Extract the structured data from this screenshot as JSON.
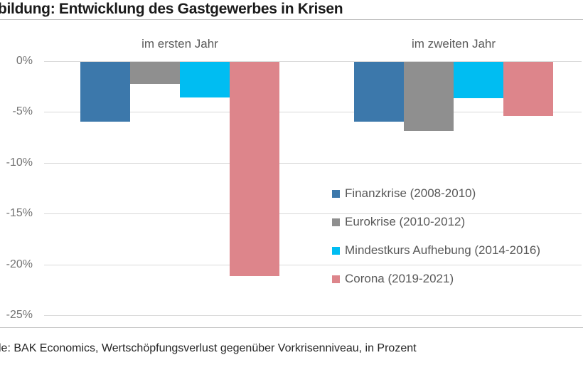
{
  "title": "bildung: Entwicklung des Gastgewerbes in Krisen",
  "source_note": "le: BAK Economics, Wertschöpfungsverlust gegenüber Vorkrisenniveau, in Prozent",
  "colors": {
    "finanzkrise": "#3C78AB",
    "eurokrise": "#8F8F8F",
    "mindestkurs": "#00BDF2",
    "corona": "#DD858B",
    "gridline": "#D9D9D9",
    "rule": "#BFBFBF",
    "label_gray": "#595959"
  },
  "chart_data": {
    "type": "bar",
    "categories": [
      "im ersten Jahr",
      "im zweiten Jahr"
    ],
    "series": [
      {
        "name": "Finanzkrise (2008-2010)",
        "color": "#3C78AB",
        "values": [
          -5.9,
          -5.9
        ]
      },
      {
        "name": "Eurokrise (2010-2012)",
        "color": "#8F8F8F",
        "values": [
          -2.2,
          -6.8
        ]
      },
      {
        "name": "Mindestkurs Aufhebung (2014-2016)",
        "color": "#00BDF2",
        "values": [
          -3.5,
          -3.6
        ]
      },
      {
        "name": "Corona (2019-2021)",
        "color": "#DD858B",
        "values": [
          -21.1,
          -5.3
        ]
      }
    ],
    "title": "bildung: Entwicklung des Gastgewerbes in Krisen",
    "xlabel": "",
    "ylabel": "",
    "y_ticks": [
      "0%",
      "-5%",
      "-10%",
      "-15%",
      "-20%",
      "-25%"
    ],
    "ylim": [
      -25,
      0
    ],
    "grid": true,
    "legend_position": "inside-right-middle",
    "unit": "Prozent"
  }
}
